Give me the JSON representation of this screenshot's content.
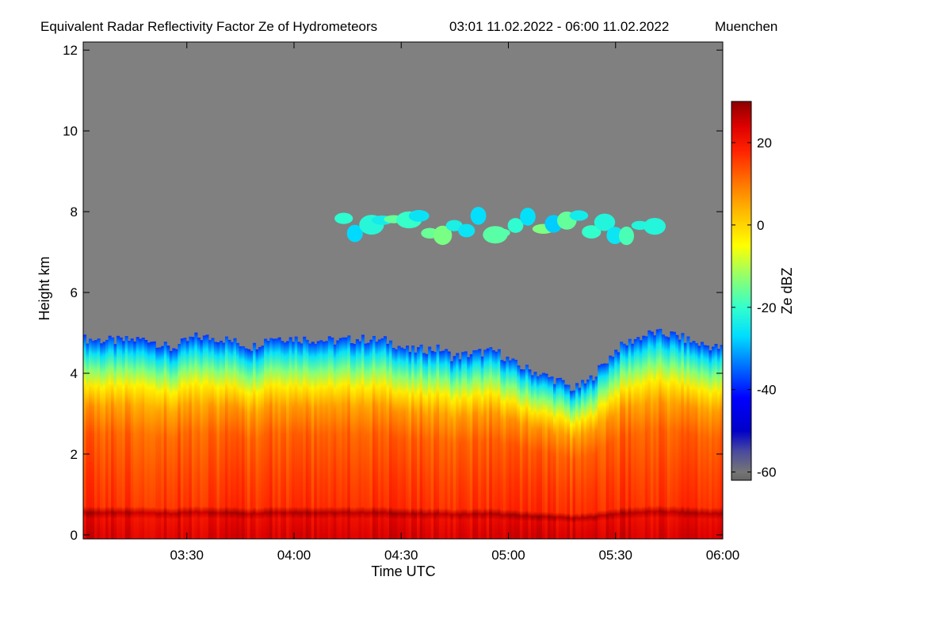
{
  "chart_data": {
    "type": "heatmap",
    "title": "Equivalent Radar Reflectivity Factor Ze of Hydrometeors",
    "period": "03:01 11.02.2022 - 06:00 11.02.2022",
    "location": "Muenchen",
    "xlabel": "Time UTC",
    "ylabel": "Height km",
    "xlim_minutes_utc": [
      181,
      360
    ],
    "xticks": [
      {
        "minute": 210,
        "label": "03:30"
      },
      {
        "minute": 240,
        "label": "04:00"
      },
      {
        "minute": 270,
        "label": "04:30"
      },
      {
        "minute": 300,
        "label": "05:00"
      },
      {
        "minute": 330,
        "label": "05:30"
      },
      {
        "minute": 360,
        "label": "06:00"
      }
    ],
    "ylim_km": [
      -0.1,
      12.2
    ],
    "yticks": [
      {
        "value": 0,
        "label": "0"
      },
      {
        "value": 2,
        "label": "2"
      },
      {
        "value": 4,
        "label": "4"
      },
      {
        "value": 6,
        "label": "6"
      },
      {
        "value": 8,
        "label": "8"
      },
      {
        "value": 10,
        "label": "10"
      },
      {
        "value": 12,
        "label": "12"
      }
    ],
    "colorbar": {
      "label": "Ze dBZ",
      "range": [
        -62,
        30
      ],
      "ticks": [
        {
          "value": 20,
          "label": "20"
        },
        {
          "value": 0,
          "label": "0"
        },
        {
          "value": -20,
          "label": "-20"
        },
        {
          "value": -40,
          "label": "-40"
        },
        {
          "value": -60,
          "label": "-60"
        }
      ],
      "colormap": [
        {
          "value": -62,
          "color": "#666666"
        },
        {
          "value": -60,
          "color": "#757575"
        },
        {
          "value": -55,
          "color": "#4a4a9e"
        },
        {
          "value": -50,
          "color": "#0000c8"
        },
        {
          "value": -42,
          "color": "#0000ff"
        },
        {
          "value": -35,
          "color": "#0066ff"
        },
        {
          "value": -27,
          "color": "#00ddff"
        },
        {
          "value": -20,
          "color": "#33ffcc"
        },
        {
          "value": -12,
          "color": "#99ff66"
        },
        {
          "value": -5,
          "color": "#ffff00"
        },
        {
          "value": 3,
          "color": "#ffbb00"
        },
        {
          "value": 10,
          "color": "#ff7700"
        },
        {
          "value": 18,
          "color": "#ff2200"
        },
        {
          "value": 24,
          "color": "#dd0000"
        },
        {
          "value": 30,
          "color": "#8c0000"
        }
      ]
    },
    "background_no_signal_color": "#808080",
    "cloud_top_km": [
      {
        "minute": 181,
        "km": 4.85
      },
      {
        "minute": 190,
        "km": 4.8
      },
      {
        "minute": 199,
        "km": 4.85
      },
      {
        "minute": 205,
        "km": 4.6
      },
      {
        "minute": 212,
        "km": 4.9
      },
      {
        "minute": 220,
        "km": 4.85
      },
      {
        "minute": 228,
        "km": 4.65
      },
      {
        "minute": 233,
        "km": 4.9
      },
      {
        "minute": 242,
        "km": 4.85
      },
      {
        "minute": 251,
        "km": 4.8
      },
      {
        "minute": 258,
        "km": 4.85
      },
      {
        "minute": 266,
        "km": 4.8
      },
      {
        "minute": 272,
        "km": 4.55
      },
      {
        "minute": 276,
        "km": 4.6
      },
      {
        "minute": 281,
        "km": 4.6
      },
      {
        "minute": 284,
        "km": 4.4
      },
      {
        "minute": 290,
        "km": 4.5
      },
      {
        "minute": 296,
        "km": 4.55
      },
      {
        "minute": 302,
        "km": 4.2
      },
      {
        "minute": 308,
        "km": 4.0
      },
      {
        "minute": 314,
        "km": 3.8
      },
      {
        "minute": 318,
        "km": 3.6
      },
      {
        "minute": 322,
        "km": 3.8
      },
      {
        "minute": 326,
        "km": 4.2
      },
      {
        "minute": 330,
        "km": 4.6
      },
      {
        "minute": 335,
        "km": 4.85
      },
      {
        "minute": 340,
        "km": 5.0
      },
      {
        "minute": 346,
        "km": 4.95
      },
      {
        "minute": 352,
        "km": 4.75
      },
      {
        "minute": 360,
        "km": 4.6
      }
    ],
    "profile_dbz": [
      {
        "km": 0.0,
        "dbz": 24
      },
      {
        "km": 0.4,
        "dbz": 22
      },
      {
        "km": 0.55,
        "dbz": 27
      },
      {
        "km": 0.7,
        "dbz": 17
      },
      {
        "km": 1.5,
        "dbz": 15
      },
      {
        "km": 2.5,
        "dbz": 12
      },
      {
        "km": 3.2,
        "dbz": 6
      },
      {
        "km": 3.7,
        "dbz": -3
      },
      {
        "km": 4.1,
        "dbz": -14
      },
      {
        "km": 4.5,
        "dbz": -26
      },
      {
        "km": 4.85,
        "dbz": -38
      }
    ],
    "upper_cloud_layer": {
      "minute_range": [
        252,
        342
      ],
      "km_range": [
        7.0,
        8.1
      ],
      "dbz_range": [
        -30,
        -14
      ]
    }
  }
}
